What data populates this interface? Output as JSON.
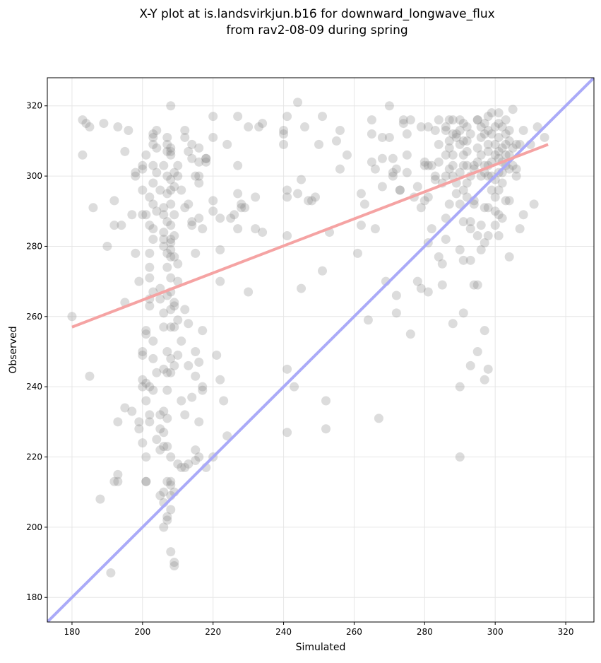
{
  "chart_data": {
    "type": "scatter",
    "title_line1": "X-Y plot at is.landsvirkjun.b16 for downward_longwave_flux",
    "title_line2": "from rav2-08-09 during spring",
    "xlabel": "Simulated",
    "ylabel": "Observed",
    "xlim": [
      173,
      328
    ],
    "ylim": [
      173,
      328
    ],
    "xticks": [
      180,
      200,
      220,
      240,
      260,
      280,
      300,
      320
    ],
    "yticks": [
      180,
      200,
      220,
      240,
      260,
      280,
      300,
      320
    ],
    "grid": true,
    "point_color": "#808080",
    "one_to_one_line": {
      "color": "#aaaaf8",
      "from": [
        173,
        173
      ],
      "to": [
        328,
        328
      ]
    },
    "fit_line": {
      "color": "#f5a3a3",
      "from": [
        180,
        257
      ],
      "to": [
        315,
        309
      ]
    },
    "points": [
      [
        180,
        260
      ],
      [
        183,
        316
      ],
      [
        184,
        315
      ],
      [
        185,
        314
      ],
      [
        183,
        306
      ],
      [
        185,
        243
      ],
      [
        186,
        291
      ],
      [
        188,
        208
      ],
      [
        189,
        315
      ],
      [
        190,
        280
      ],
      [
        191,
        187
      ],
      [
        192,
        293
      ],
      [
        192,
        286
      ],
      [
        192,
        213
      ],
      [
        193,
        215
      ],
      [
        193,
        230
      ],
      [
        193,
        314
      ],
      [
        193,
        213
      ],
      [
        194,
        286
      ],
      [
        195,
        264
      ],
      [
        195,
        307
      ],
      [
        195,
        234
      ],
      [
        196,
        313
      ],
      [
        197,
        289
      ],
      [
        197,
        233
      ],
      [
        198,
        301
      ],
      [
        198,
        300
      ],
      [
        198,
        278
      ],
      [
        199,
        270
      ],
      [
        199,
        228
      ],
      [
        199,
        230
      ],
      [
        200,
        289
      ],
      [
        200,
        224
      ],
      [
        200,
        240
      ],
      [
        200,
        242
      ],
      [
        200,
        250
      ],
      [
        200,
        249
      ],
      [
        200,
        302
      ],
      [
        200,
        303
      ],
      [
        200,
        296
      ],
      [
        201,
        255
      ],
      [
        201,
        256
      ],
      [
        201,
        241
      ],
      [
        201,
        220
      ],
      [
        201,
        213
      ],
      [
        201,
        213
      ],
      [
        201,
        289
      ],
      [
        201,
        306
      ],
      [
        201,
        236
      ],
      [
        202,
        294
      ],
      [
        202,
        286
      ],
      [
        202,
        278
      ],
      [
        202,
        274
      ],
      [
        202,
        271
      ],
      [
        202,
        265
      ],
      [
        202,
        263
      ],
      [
        202,
        240
      ],
      [
        202,
        232
      ],
      [
        202,
        230
      ],
      [
        203,
        309
      ],
      [
        203,
        311
      ],
      [
        203,
        312
      ],
      [
        203,
        298
      ],
      [
        203,
        303
      ],
      [
        203,
        292
      ],
      [
        203,
        285
      ],
      [
        203,
        282
      ],
      [
        203,
        267
      ],
      [
        203,
        253
      ],
      [
        203,
        248
      ],
      [
        203,
        239
      ],
      [
        204,
        313
      ],
      [
        204,
        308
      ],
      [
        204,
        301
      ],
      [
        204,
        290
      ],
      [
        204,
        244
      ],
      [
        204,
        225
      ],
      [
        205,
        296
      ],
      [
        205,
        268
      ],
      [
        205,
        265
      ],
      [
        205,
        232
      ],
      [
        205,
        228
      ],
      [
        205,
        222
      ],
      [
        205,
        209
      ],
      [
        206,
        303
      ],
      [
        206,
        291
      ],
      [
        206,
        289
      ],
      [
        206,
        284
      ],
      [
        206,
        282
      ],
      [
        206,
        280
      ],
      [
        206,
        261
      ],
      [
        206,
        257
      ],
      [
        206,
        245
      ],
      [
        206,
        233
      ],
      [
        206,
        227
      ],
      [
        206,
        223
      ],
      [
        206,
        210
      ],
      [
        206,
        207
      ],
      [
        206,
        200
      ],
      [
        207,
        311
      ],
      [
        207,
        309
      ],
      [
        207,
        307
      ],
      [
        207,
        300
      ],
      [
        207,
        295
      ],
      [
        207,
        287
      ],
      [
        207,
        278
      ],
      [
        207,
        274
      ],
      [
        207,
        266
      ],
      [
        207,
        250
      ],
      [
        207,
        244
      ],
      [
        207,
        239
      ],
      [
        207,
        231
      ],
      [
        207,
        223
      ],
      [
        207,
        213
      ],
      [
        207,
        203
      ],
      [
        207,
        202
      ],
      [
        208,
        320
      ],
      [
        208,
        308
      ],
      [
        208,
        307
      ],
      [
        208,
        306
      ],
      [
        208,
        299
      ],
      [
        208,
        296
      ],
      [
        208,
        292
      ],
      [
        208,
        286
      ],
      [
        208,
        282
      ],
      [
        208,
        281
      ],
      [
        208,
        279
      ],
      [
        208,
        277
      ],
      [
        208,
        271
      ],
      [
        208,
        267
      ],
      [
        208,
        262
      ],
      [
        208,
        257
      ],
      [
        208,
        248
      ],
      [
        208,
        244
      ],
      [
        208,
        220
      ],
      [
        208,
        213
      ],
      [
        208,
        212
      ],
      [
        208,
        209
      ],
      [
        208,
        205
      ],
      [
        208,
        193
      ],
      [
        209,
        301
      ],
      [
        209,
        297
      ],
      [
        209,
        289
      ],
      [
        209,
        283
      ],
      [
        209,
        277
      ],
      [
        209,
        264
      ],
      [
        209,
        263
      ],
      [
        209,
        257
      ],
      [
        209,
        246
      ],
      [
        209,
        210
      ],
      [
        209,
        190
      ],
      [
        209,
        189
      ],
      [
        210,
        303
      ],
      [
        210,
        300
      ],
      [
        210,
        275
      ],
      [
        210,
        270
      ],
      [
        210,
        259
      ],
      [
        210,
        249
      ],
      [
        210,
        218
      ],
      [
        211,
        296
      ],
      [
        211,
        253
      ],
      [
        211,
        236
      ],
      [
        211,
        217
      ],
      [
        212,
        311
      ],
      [
        212,
        313
      ],
      [
        212,
        291
      ],
      [
        212,
        262
      ],
      [
        212,
        232
      ],
      [
        212,
        217
      ],
      [
        213,
        307
      ],
      [
        213,
        292
      ],
      [
        213,
        258
      ],
      [
        213,
        246
      ],
      [
        213,
        218
      ],
      [
        214,
        309
      ],
      [
        214,
        305
      ],
      [
        214,
        287
      ],
      [
        214,
        286
      ],
      [
        214,
        237
      ],
      [
        215,
        300
      ],
      [
        215,
        278
      ],
      [
        215,
        250
      ],
      [
        215,
        243
      ],
      [
        215,
        222
      ],
      [
        215,
        219
      ],
      [
        216,
        308
      ],
      [
        216,
        304
      ],
      [
        216,
        300
      ],
      [
        216,
        298
      ],
      [
        216,
        288
      ],
      [
        216,
        247
      ],
      [
        216,
        230
      ],
      [
        216,
        220
      ],
      [
        217,
        256
      ],
      [
        217,
        285
      ],
      [
        217,
        240
      ],
      [
        217,
        239
      ],
      [
        218,
        305
      ],
      [
        218,
        305
      ],
      [
        218,
        304
      ],
      [
        218,
        217
      ],
      [
        220,
        317
      ],
      [
        220,
        311
      ],
      [
        220,
        290
      ],
      [
        220,
        293
      ],
      [
        220,
        220
      ],
      [
        221,
        249
      ],
      [
        222,
        279
      ],
      [
        222,
        242
      ],
      [
        222,
        270
      ],
      [
        222,
        288
      ],
      [
        223,
        236
      ],
      [
        224,
        226
      ],
      [
        224,
        309
      ],
      [
        225,
        288
      ],
      [
        226,
        289
      ],
      [
        227,
        317
      ],
      [
        227,
        295
      ],
      [
        227,
        285
      ],
      [
        227,
        303
      ],
      [
        228,
        292
      ],
      [
        228,
        291
      ],
      [
        229,
        291
      ],
      [
        230,
        314
      ],
      [
        230,
        267
      ],
      [
        232,
        294
      ],
      [
        232,
        285
      ],
      [
        233,
        314
      ],
      [
        234,
        315
      ],
      [
        234,
        284
      ],
      [
        240,
        313
      ],
      [
        240,
        309
      ],
      [
        240,
        312
      ],
      [
        241,
        317
      ],
      [
        241,
        296
      ],
      [
        241,
        294
      ],
      [
        241,
        283
      ],
      [
        241,
        245
      ],
      [
        241,
        227
      ],
      [
        243,
        240
      ],
      [
        244,
        321
      ],
      [
        244,
        295
      ],
      [
        245,
        299
      ],
      [
        245,
        268
      ],
      [
        246,
        314
      ],
      [
        247,
        293
      ],
      [
        248,
        293
      ],
      [
        249,
        294
      ],
      [
        250,
        309
      ],
      [
        251,
        273
      ],
      [
        251,
        317
      ],
      [
        252,
        228
      ],
      [
        252,
        236
      ],
      [
        253,
        284
      ],
      [
        255,
        310
      ],
      [
        256,
        313
      ],
      [
        256,
        302
      ],
      [
        258,
        306
      ],
      [
        261,
        278
      ],
      [
        262,
        295
      ],
      [
        262,
        286
      ],
      [
        263,
        292
      ],
      [
        264,
        259
      ],
      [
        265,
        312
      ],
      [
        265,
        304
      ],
      [
        265,
        316
      ],
      [
        266,
        302
      ],
      [
        266,
        285
      ],
      [
        267,
        231
      ],
      [
        268,
        311
      ],
      [
        268,
        305
      ],
      [
        268,
        297
      ],
      [
        269,
        270
      ],
      [
        270,
        320
      ],
      [
        270,
        311
      ],
      [
        271,
        305
      ],
      [
        271,
        300
      ],
      [
        271,
        301
      ],
      [
        272,
        302
      ],
      [
        272,
        266
      ],
      [
        272,
        261
      ],
      [
        273,
        296
      ],
      [
        273,
        296
      ],
      [
        274,
        315
      ],
      [
        274,
        316
      ],
      [
        275,
        306
      ],
      [
        275,
        301
      ],
      [
        275,
        312
      ],
      [
        276,
        255
      ],
      [
        276,
        316
      ],
      [
        277,
        294
      ],
      [
        278,
        297
      ],
      [
        278,
        270
      ],
      [
        279,
        268
      ],
      [
        279,
        314
      ],
      [
        279,
        291
      ],
      [
        280,
        293
      ],
      [
        280,
        304
      ],
      [
        280,
        303
      ],
      [
        281,
        314
      ],
      [
        281,
        303
      ],
      [
        281,
        294
      ],
      [
        281,
        281
      ],
      [
        281,
        267
      ],
      [
        282,
        303
      ],
      [
        282,
        285
      ],
      [
        283,
        299
      ],
      [
        283,
        300
      ],
      [
        283,
        313
      ],
      [
        284,
        309
      ],
      [
        284,
        304
      ],
      [
        284,
        316
      ],
      [
        284,
        277
      ],
      [
        285,
        275
      ],
      [
        285,
        269
      ],
      [
        285,
        298
      ],
      [
        286,
        314
      ],
      [
        286,
        313
      ],
      [
        286,
        300
      ],
      [
        286,
        288
      ],
      [
        286,
        282
      ],
      [
        286,
        306
      ],
      [
        287,
        310
      ],
      [
        287,
        308
      ],
      [
        287,
        302
      ],
      [
        287,
        292
      ],
      [
        287,
        316
      ],
      [
        288,
        316
      ],
      [
        288,
        312
      ],
      [
        288,
        306
      ],
      [
        288,
        303
      ],
      [
        288,
        300
      ],
      [
        288,
        258
      ],
      [
        289,
        311
      ],
      [
        289,
        295
      ],
      [
        289,
        298
      ],
      [
        289,
        312
      ],
      [
        290,
        316
      ],
      [
        290,
        313
      ],
      [
        290,
        309
      ],
      [
        290,
        301
      ],
      [
        290,
        292
      ],
      [
        290,
        279
      ],
      [
        290,
        220
      ],
      [
        290,
        240
      ],
      [
        291,
        315
      ],
      [
        291,
        310
      ],
      [
        291,
        306
      ],
      [
        291,
        303
      ],
      [
        291,
        296
      ],
      [
        291,
        287
      ],
      [
        291,
        276
      ],
      [
        291,
        261
      ],
      [
        292,
        314
      ],
      [
        292,
        310
      ],
      [
        292,
        307
      ],
      [
        292,
        303
      ],
      [
        292,
        298
      ],
      [
        292,
        294
      ],
      [
        293,
        312
      ],
      [
        293,
        300
      ],
      [
        293,
        287
      ],
      [
        293,
        285
      ],
      [
        293,
        276
      ],
      [
        293,
        246
      ],
      [
        294,
        303
      ],
      [
        294,
        302
      ],
      [
        294,
        293
      ],
      [
        294,
        269
      ],
      [
        294,
        292
      ],
      [
        295,
        316
      ],
      [
        295,
        308
      ],
      [
        295,
        304
      ],
      [
        295,
        283
      ],
      [
        295,
        269
      ],
      [
        295,
        250
      ],
      [
        295,
        316
      ],
      [
        296,
        314
      ],
      [
        296,
        311
      ],
      [
        296,
        306
      ],
      [
        296,
        300
      ],
      [
        296,
        286
      ],
      [
        296,
        279
      ],
      [
        297,
        315
      ],
      [
        297,
        312
      ],
      [
        297,
        303
      ],
      [
        297,
        301
      ],
      [
        297,
        291
      ],
      [
        297,
        281
      ],
      [
        297,
        256
      ],
      [
        297,
        242
      ],
      [
        298,
        317
      ],
      [
        298,
        313
      ],
      [
        298,
        309
      ],
      [
        298,
        307
      ],
      [
        298,
        303
      ],
      [
        298,
        300
      ],
      [
        298,
        291
      ],
      [
        298,
        283
      ],
      [
        298,
        245
      ],
      [
        299,
        318
      ],
      [
        299,
        312
      ],
      [
        299,
        304
      ],
      [
        299,
        296
      ],
      [
        299,
        300
      ],
      [
        300,
        314
      ],
      [
        300,
        309
      ],
      [
        300,
        306
      ],
      [
        300,
        299
      ],
      [
        300,
        294
      ],
      [
        300,
        290
      ],
      [
        300,
        286
      ],
      [
        301,
        318
      ],
      [
        301,
        315
      ],
      [
        301,
        311
      ],
      [
        301,
        307
      ],
      [
        301,
        305
      ],
      [
        301,
        301
      ],
      [
        301,
        296
      ],
      [
        301,
        289
      ],
      [
        301,
        283
      ],
      [
        302,
        314
      ],
      [
        302,
        308
      ],
      [
        302,
        304
      ],
      [
        302,
        301
      ],
      [
        302,
        298
      ],
      [
        302,
        288
      ],
      [
        303,
        316
      ],
      [
        303,
        312
      ],
      [
        303,
        309
      ],
      [
        303,
        306
      ],
      [
        303,
        303
      ],
      [
        303,
        293
      ],
      [
        304,
        313
      ],
      [
        304,
        310
      ],
      [
        304,
        306
      ],
      [
        304,
        302
      ],
      [
        304,
        293
      ],
      [
        304,
        277
      ],
      [
        305,
        319
      ],
      [
        305,
        308
      ],
      [
        305,
        303
      ],
      [
        306,
        309
      ],
      [
        306,
        302
      ],
      [
        306,
        300
      ],
      [
        307,
        309
      ],
      [
        307,
        285
      ],
      [
        308,
        313
      ],
      [
        308,
        289
      ],
      [
        310,
        309
      ],
      [
        311,
        292
      ],
      [
        312,
        314
      ],
      [
        314,
        311
      ]
    ]
  }
}
